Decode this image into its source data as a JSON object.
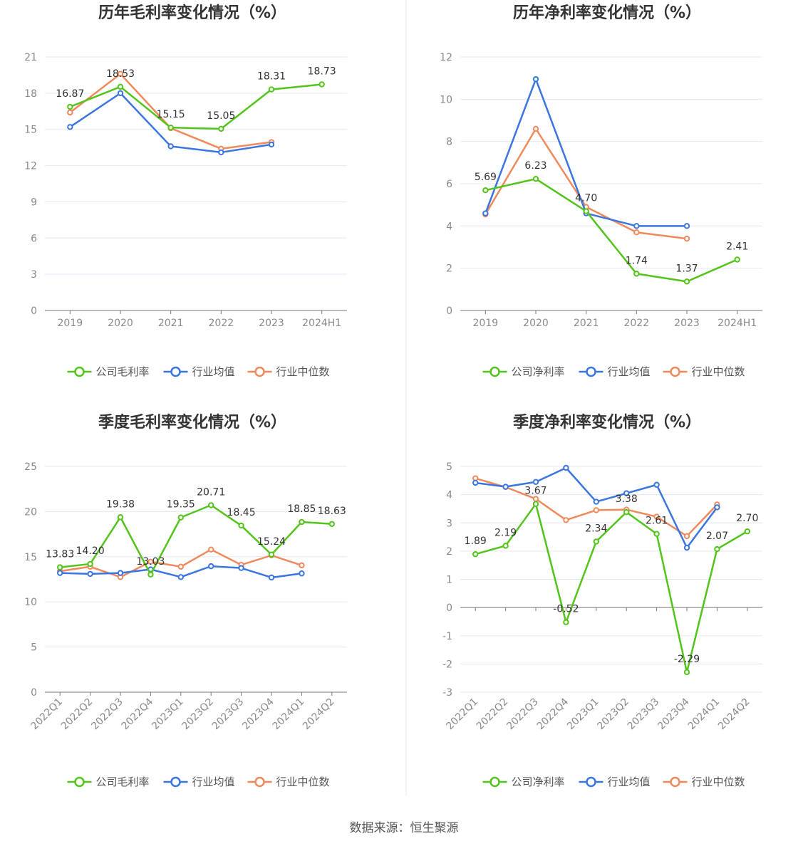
{
  "source_text": "数据来源：恒生聚源",
  "colors": {
    "company": "#52c41a",
    "industry_avg": "#3a75e0",
    "industry_median": "#f08a5d",
    "grid": "#e6e8f2",
    "axis": "#777777",
    "divider": "#e8e8e8"
  },
  "chart_data": [
    {
      "type": "line",
      "title": "历年毛利率变化情况（%）",
      "categories": [
        "2019",
        "2020",
        "2021",
        "2022",
        "2023",
        "2024H1"
      ],
      "ylim": [
        0,
        21
      ],
      "yticks": [
        0,
        3,
        6,
        9,
        12,
        15,
        18,
        21
      ],
      "grid": true,
      "legend_position": "bottom",
      "series": [
        {
          "name": "公司毛利率",
          "role": "company",
          "values": [
            16.87,
            18.53,
            15.15,
            15.05,
            18.31,
            18.73
          ],
          "labels": [
            "16.87",
            "18.53",
            "15.15",
            "15.05",
            "18.31",
            "18.73"
          ]
        },
        {
          "name": "行业均值",
          "role": "industry_avg",
          "values": [
            15.2,
            18.0,
            13.6,
            13.1,
            13.75,
            null
          ],
          "labels": []
        },
        {
          "name": "行业中位数",
          "role": "industry_median",
          "values": [
            16.4,
            19.6,
            15.1,
            13.4,
            13.95,
            null
          ],
          "labels": []
        }
      ]
    },
    {
      "type": "line",
      "title": "历年净利率变化情况（%）",
      "categories": [
        "2019",
        "2020",
        "2021",
        "2022",
        "2023",
        "2024H1"
      ],
      "ylim": [
        0,
        12
      ],
      "yticks": [
        0,
        2,
        4,
        6,
        8,
        10,
        12
      ],
      "grid": true,
      "legend_position": "bottom",
      "series": [
        {
          "name": "公司净利率",
          "role": "company",
          "values": [
            5.69,
            6.23,
            4.7,
            1.74,
            1.37,
            2.41
          ],
          "labels": [
            "5.69",
            "6.23",
            "4.70",
            "1.74",
            "1.37",
            "2.41"
          ]
        },
        {
          "name": "行业均值",
          "role": "industry_avg",
          "values": [
            4.6,
            10.95,
            4.6,
            4.0,
            4.0,
            null
          ],
          "labels": []
        },
        {
          "name": "行业中位数",
          "role": "industry_median",
          "values": [
            4.55,
            8.6,
            4.9,
            3.7,
            3.4,
            null
          ],
          "labels": []
        }
      ]
    },
    {
      "type": "line",
      "title": "季度毛利率变化情况（%）",
      "categories": [
        "2022Q1",
        "2022Q2",
        "2022Q3",
        "2022Q4",
        "2023Q1",
        "2023Q2",
        "2023Q3",
        "2023Q4",
        "2024Q1",
        "2024Q2"
      ],
      "ylim": [
        0,
        25
      ],
      "yticks": [
        0,
        5,
        10,
        15,
        20,
        25
      ],
      "grid": true,
      "legend_position": "bottom",
      "series": [
        {
          "name": "公司毛利率",
          "role": "company",
          "values": [
            13.83,
            14.2,
            19.38,
            13.03,
            19.35,
            20.71,
            18.45,
            15.24,
            18.85,
            18.63
          ],
          "labels": [
            "13.83",
            "14.20",
            "19.38",
            "13.03",
            "19.35",
            "20.71",
            "18.45",
            "15.24",
            "18.85",
            "18.63"
          ]
        },
        {
          "name": "行业均值",
          "role": "industry_avg",
          "values": [
            13.2,
            13.1,
            13.2,
            13.6,
            12.75,
            13.95,
            13.75,
            12.7,
            13.15,
            null
          ],
          "labels": []
        },
        {
          "name": "行业中位数",
          "role": "industry_median",
          "values": [
            13.4,
            13.9,
            12.75,
            14.45,
            13.9,
            15.8,
            14.1,
            15.15,
            14.05,
            null
          ],
          "labels": []
        }
      ]
    },
    {
      "type": "line",
      "title": "季度净利率变化情况（%）",
      "categories": [
        "2022Q1",
        "2022Q2",
        "2022Q3",
        "2022Q4",
        "2023Q1",
        "2023Q2",
        "2023Q3",
        "2023Q4",
        "2024Q1",
        "2024Q2"
      ],
      "ylim": [
        -3,
        5
      ],
      "yticks": [
        -3,
        -2,
        -1,
        0,
        1,
        2,
        3,
        4,
        5
      ],
      "grid": true,
      "legend_position": "bottom",
      "series": [
        {
          "name": "公司净利率",
          "role": "company",
          "values": [
            1.89,
            2.19,
            3.67,
            -0.52,
            2.34,
            3.38,
            2.61,
            -2.29,
            2.07,
            2.7
          ],
          "labels": [
            "1.89",
            "2.19",
            "3.67",
            "-0.52",
            "2.34",
            "3.38",
            "2.61",
            "-2.29",
            "2.07",
            "2.70"
          ]
        },
        {
          "name": "行业均值",
          "role": "industry_avg",
          "values": [
            4.42,
            4.28,
            4.45,
            4.95,
            3.75,
            4.05,
            4.35,
            2.12,
            3.55,
            null
          ],
          "labels": []
        },
        {
          "name": "行业中位数",
          "role": "industry_median",
          "values": [
            4.58,
            4.27,
            3.85,
            3.1,
            3.45,
            3.47,
            3.22,
            2.53,
            3.65,
            null
          ],
          "labels": []
        }
      ]
    }
  ]
}
